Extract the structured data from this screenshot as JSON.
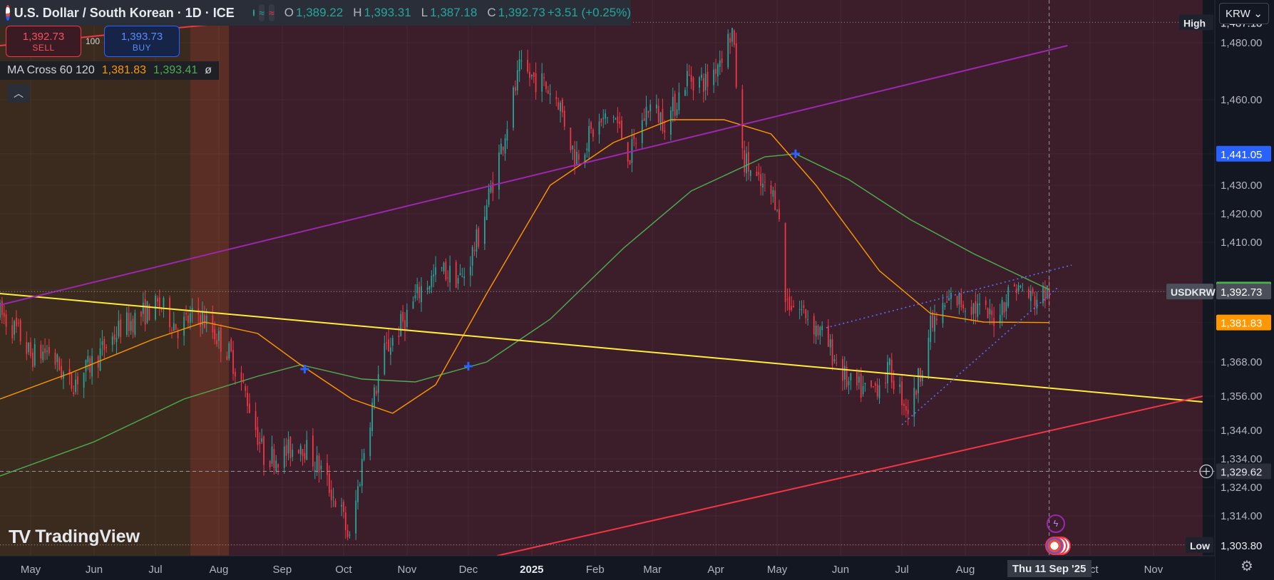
{
  "header": {
    "symbol_title": "U.S. Dollar / South Korean · 1D · ICE",
    "open_label": "O",
    "open": "1,389.22",
    "high_label": "H",
    "high": "1,393.31",
    "low_label": "L",
    "low": "1,387.18",
    "close_label": "C",
    "close": "1,392.73",
    "change": "+3.51 (+0.25%)"
  },
  "trade": {
    "sell_price": "1,392.73",
    "sell_label": "SELL",
    "quantity": "100",
    "buy_price": "1,393.73",
    "buy_label": "BUY"
  },
  "indicator": {
    "name": "MA Cross 60 120",
    "fast_value": "1,381.83",
    "slow_value": "1,393.41",
    "extra": "ø"
  },
  "collapse_icon": "chevron-up-icon",
  "currency_selector": "KRW",
  "branding": "TradingView",
  "crosshair_date": "Thu 11 Sep '25",
  "colors": {
    "background": "#131722",
    "up": "#26a69a",
    "down": "#f23645",
    "ma_fast": "#ff9800",
    "ma_slow": "#4caf50",
    "trend_yellow": "#ffeb3b",
    "channel_purple": "#9c27b0",
    "channel_red": "#f23645",
    "wedge_blue": "#5b6cff"
  },
  "chart_data": {
    "type": "candlestick",
    "symbol": "USDKRW",
    "y_ticks": [
      1480,
      1460,
      1441.05,
      1430,
      1420,
      1410,
      1393.41,
      1392.73,
      1381.83,
      1368,
      1356,
      1344,
      1334,
      1329.62,
      1324,
      1314,
      1303.8
    ],
    "ylim": [
      1300,
      1495
    ],
    "x_labels": [
      "May",
      "Jun",
      "Jul",
      "Aug",
      "Sep",
      "Oct",
      "Nov",
      "Dec",
      "2025",
      "Feb",
      "Mar",
      "Apr",
      "May",
      "Jun",
      "Jul",
      "Aug",
      "Sep",
      "Oct",
      "Nov"
    ],
    "x_start": "2024-04-16",
    "x_end": "2025-12-01",
    "price_labels": [
      {
        "text": "High",
        "value": "1,487.18",
        "price": 1487.18,
        "kind": "high"
      },
      {
        "text": "",
        "value": "1,441.05",
        "price": 1441.05,
        "kind": "blue"
      },
      {
        "text": "",
        "value": "1,393.41",
        "price": 1393.41,
        "kind": "green"
      },
      {
        "text": "USDKRW",
        "value": "1,392.73",
        "price": 1392.73,
        "kind": "gray"
      },
      {
        "text": "",
        "value": "1,381.83",
        "price": 1381.83,
        "kind": "orange"
      },
      {
        "text": "",
        "value": "1,329.62",
        "price": 1329.62,
        "kind": "crosshair"
      },
      {
        "text": "Low",
        "value": "1,303.80",
        "price": 1303.8,
        "kind": "low"
      }
    ],
    "close_path": [
      [
        "2024-04-16",
        1385
      ],
      [
        "2024-04-25",
        1378
      ],
      [
        "2024-05-01",
        1370
      ],
      [
        "2024-05-10",
        1372
      ],
      [
        "2024-05-20",
        1360
      ],
      [
        "2024-05-28",
        1365
      ],
      [
        "2024-06-05",
        1372
      ],
      [
        "2024-06-14",
        1380
      ],
      [
        "2024-06-25",
        1385
      ],
      [
        "2024-07-03",
        1388
      ],
      [
        "2024-07-12",
        1380
      ],
      [
        "2024-07-22",
        1385
      ],
      [
        "2024-07-30",
        1378
      ],
      [
        "2024-08-07",
        1370
      ],
      [
        "2024-08-15",
        1355
      ],
      [
        "2024-08-23",
        1335
      ],
      [
        "2024-09-01",
        1335
      ],
      [
        "2024-09-10",
        1340
      ],
      [
        "2024-09-20",
        1330
      ],
      [
        "2024-09-30",
        1315
      ],
      [
        "2024-10-04",
        1305
      ],
      [
        "2024-10-12",
        1342
      ],
      [
        "2024-10-20",
        1370
      ],
      [
        "2024-10-30",
        1382
      ],
      [
        "2024-11-08",
        1394
      ],
      [
        "2024-11-18",
        1400
      ],
      [
        "2024-11-28",
        1397
      ],
      [
        "2024-12-06",
        1412
      ],
      [
        "2024-12-16",
        1440
      ],
      [
        "2024-12-26",
        1470
      ],
      [
        "2025-01-06",
        1466
      ],
      [
        "2025-01-14",
        1460
      ],
      [
        "2025-01-22",
        1440
      ],
      [
        "2025-02-01",
        1450
      ],
      [
        "2025-02-10",
        1455
      ],
      [
        "2025-02-18",
        1440
      ],
      [
        "2025-02-27",
        1458
      ],
      [
        "2025-03-08",
        1452
      ],
      [
        "2025-03-18",
        1468
      ],
      [
        "2025-03-28",
        1466
      ],
      [
        "2025-04-09",
        1484
      ],
      [
        "2025-04-14",
        1440
      ],
      [
        "2025-04-22",
        1430
      ],
      [
        "2025-05-01",
        1425
      ],
      [
        "2025-05-05",
        1390
      ],
      [
        "2025-05-15",
        1385
      ],
      [
        "2025-05-25",
        1375
      ],
      [
        "2025-06-05",
        1360
      ],
      [
        "2025-06-15",
        1357
      ],
      [
        "2025-06-25",
        1365
      ],
      [
        "2025-07-05",
        1350
      ],
      [
        "2025-07-15",
        1380
      ],
      [
        "2025-07-25",
        1390
      ],
      [
        "2025-08-04",
        1388
      ],
      [
        "2025-08-14",
        1383
      ],
      [
        "2025-08-25",
        1395
      ],
      [
        "2025-09-03",
        1390
      ],
      [
        "2025-09-11",
        1392.73
      ]
    ],
    "ma_fast": [
      [
        "2024-04-16",
        1355
      ],
      [
        "2024-05-20",
        1364
      ],
      [
        "2024-06-30",
        1376
      ],
      [
        "2024-07-25",
        1382
      ],
      [
        "2024-08-20",
        1378
      ],
      [
        "2024-09-10",
        1367
      ],
      [
        "2024-10-05",
        1355
      ],
      [
        "2024-10-25",
        1350
      ],
      [
        "2024-11-15",
        1360
      ],
      [
        "2024-12-10",
        1392
      ],
      [
        "2025-01-10",
        1430
      ],
      [
        "2025-02-10",
        1445
      ],
      [
        "2025-03-10",
        1453
      ],
      [
        "2025-04-05",
        1453
      ],
      [
        "2025-04-28",
        1448
      ],
      [
        "2025-05-20",
        1430
      ],
      [
        "2025-06-20",
        1400
      ],
      [
        "2025-07-15",
        1385
      ],
      [
        "2025-08-10",
        1382
      ],
      [
        "2025-09-11",
        1381.83
      ]
    ],
    "ma_slow": [
      [
        "2024-04-16",
        1328
      ],
      [
        "2024-06-01",
        1340
      ],
      [
        "2024-07-15",
        1355
      ],
      [
        "2024-08-20",
        1363
      ],
      [
        "2024-09-10",
        1367
      ],
      [
        "2024-10-10",
        1362
      ],
      [
        "2024-11-05",
        1361
      ],
      [
        "2024-12-10",
        1368
      ],
      [
        "2025-01-10",
        1383
      ],
      [
        "2025-02-15",
        1408
      ],
      [
        "2025-03-20",
        1428
      ],
      [
        "2025-04-25",
        1440
      ],
      [
        "2025-05-10",
        1441
      ],
      [
        "2025-06-05",
        1432
      ],
      [
        "2025-07-05",
        1418
      ],
      [
        "2025-08-05",
        1406
      ],
      [
        "2025-09-11",
        1393.41
      ]
    ],
    "ma_crosses": [
      {
        "date": "2024-09-12",
        "price": 1365.5
      },
      {
        "date": "2024-12-01",
        "price": 1366.5
      },
      {
        "date": "2025-05-10",
        "price": 1441.05
      }
    ],
    "trend_lines": [
      {
        "name": "",
        "color": "#ffeb3b",
        "from": [
          "2024-04-16",
          1392
        ],
        "to": [
          "2025-11-25",
          1354
        ]
      },
      {
        "name": "",
        "color": "#9c27b0",
        "from": [
          "2024-04-16",
          1388
        ],
        "to": [
          "2025-09-20",
          1479
        ]
      },
      {
        "name": "",
        "color": "#f23645",
        "from": [
          "2024-04-16",
          1479
        ],
        "to": [
          "2025-01-20",
          1499
        ]
      },
      {
        "name": "",
        "color": "#f23645",
        "from": [
          "2024-12-15",
          1300
        ],
        "to": [
          "2025-11-25",
          1356
        ]
      },
      {
        "name": "",
        "color": "#5b6cff",
        "dashed": true,
        "from": [
          "2025-05-25",
          1380
        ],
        "to": [
          "2025-09-22",
          1402
        ]
      },
      {
        "name": "",
        "color": "#5b6cff",
        "dashed": true,
        "from": [
          "2025-07-01",
          1346
        ],
        "to": [
          "2025-09-15",
          1394
        ]
      }
    ],
    "zones": [
      {
        "from": "2024-04-16",
        "to": "2024-07-18",
        "color": "#3b2b1e"
      },
      {
        "from": "2024-07-18",
        "to": "2024-08-06",
        "color": "#5a2e24"
      },
      {
        "from": "2024-08-06",
        "to": "2025-11-25",
        "color": "#3c1e2a"
      }
    ]
  }
}
